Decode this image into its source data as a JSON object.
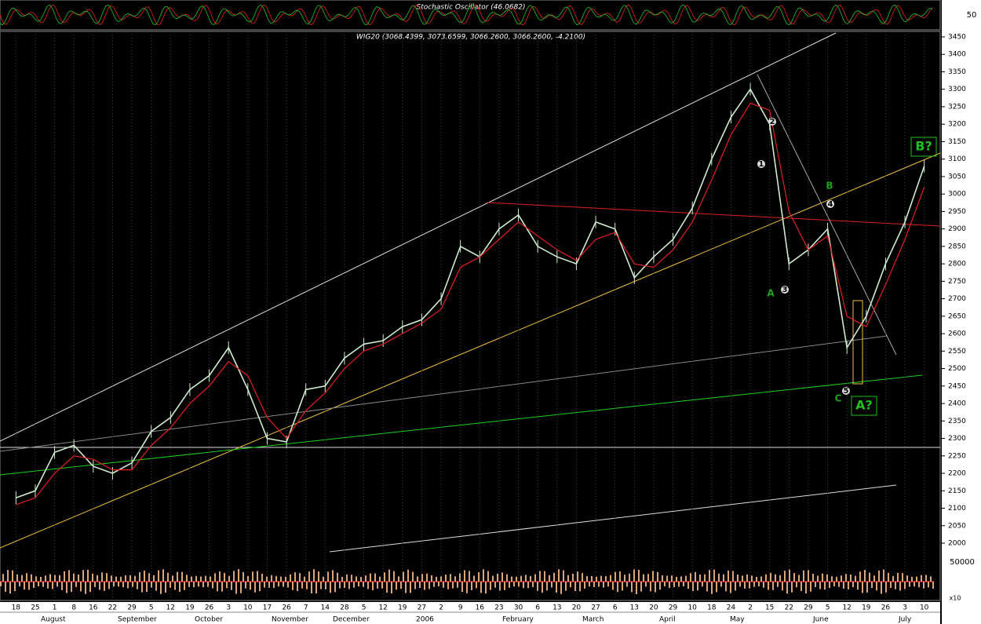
{
  "chart_data": {
    "type": "line",
    "title": "WIG20 (3068.4399, 3073.6599, 3066.2600, 3066.2600, -4.2100)",
    "oscillator": {
      "title": "Stochastic Oscillator (46.0682)",
      "ticks": [
        50
      ]
    },
    "volume": {
      "ticks": [
        50000
      ],
      "scale_label": "x10"
    },
    "categories": [
      "18",
      "25",
      "1",
      "8",
      "16",
      "22",
      "29",
      "5",
      "12",
      "19",
      "26",
      "3",
      "10",
      "17",
      "26",
      "7",
      "14",
      "28",
      "5",
      "12",
      "19",
      "27",
      "2",
      "9",
      "16",
      "23",
      "30",
      "6",
      "13",
      "20",
      "27",
      "6",
      "13",
      "20",
      "29",
      "10",
      "18",
      "24",
      "2",
      "15",
      "22",
      "29",
      "5",
      "12",
      "19",
      "26",
      "3",
      "10"
    ],
    "months": [
      "August",
      "September",
      "October",
      "November",
      "December",
      "2006",
      "February",
      "March",
      "April",
      "May",
      "June",
      "July"
    ],
    "series": [
      {
        "color": "#cfeccf",
        "values": [
          2130,
          2150,
          2260,
          2280,
          2220,
          2200,
          2230,
          2320,
          2360,
          2440,
          2480,
          2560,
          2440,
          2300,
          2290,
          2440,
          2450,
          2530,
          2570,
          2580,
          2620,
          2640,
          2700,
          2850,
          2820,
          2900,
          2940,
          2850,
          2820,
          2800,
          2920,
          2900,
          2760,
          2820,
          2870,
          2960,
          3100,
          3220,
          3300,
          3200,
          2800,
          2840,
          2900,
          2560,
          2650,
          2800,
          2920,
          3080
        ]
      },
      {
        "color": "#e02020",
        "values": [
          2110,
          2130,
          2200,
          2250,
          2240,
          2210,
          2210,
          2280,
          2330,
          2400,
          2450,
          2520,
          2480,
          2360,
          2300,
          2380,
          2430,
          2500,
          2550,
          2570,
          2600,
          2630,
          2670,
          2790,
          2820,
          2870,
          2920,
          2880,
          2840,
          2810,
          2870,
          2890,
          2800,
          2790,
          2840,
          2920,
          3040,
          3170,
          3260,
          3240,
          2950,
          2840,
          2880,
          2650,
          2620,
          2740,
          2870,
          3020
        ]
      }
    ],
    "ylim": [
      2000,
      3450
    ],
    "yticks": [
      2000,
      2050,
      2100,
      2150,
      2200,
      2250,
      2300,
      2350,
      2400,
      2450,
      2500,
      2550,
      2600,
      2650,
      2700,
      2750,
      2800,
      2850,
      2900,
      2950,
      3000,
      3050,
      3100,
      3150,
      3200,
      3250,
      3300,
      3350,
      3400,
      3450
    ],
    "wave_labels": [
      "A",
      "B",
      "C",
      "A?",
      "B?",
      "1",
      "2",
      "3",
      "4",
      "5"
    ]
  }
}
